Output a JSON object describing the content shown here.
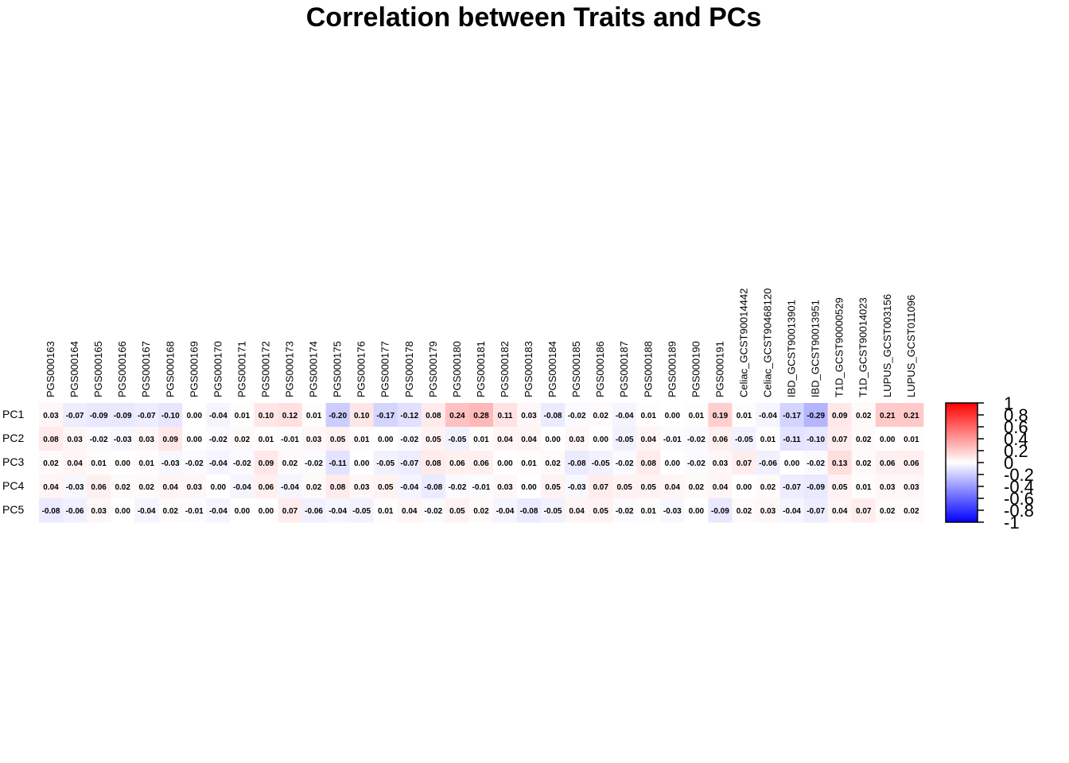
{
  "chart_data": {
    "type": "heatmap",
    "title": "Correlation between Traits and PCs",
    "rows": [
      "PC1",
      "PC2",
      "PC3",
      "PC4",
      "PC5"
    ],
    "columns": [
      "PGS000163",
      "PGS000164",
      "PGS000165",
      "PGS000166",
      "PGS000167",
      "PGS000168",
      "PGS000169",
      "PGS000170",
      "PGS000171",
      "PGS000172",
      "PGS000173",
      "PGS000174",
      "PGS000175",
      "PGS000176",
      "PGS000177",
      "PGS000178",
      "PGS000179",
      "PGS000180",
      "PGS000181",
      "PGS000182",
      "PGS000183",
      "PGS000184",
      "PGS000185",
      "PGS000186",
      "PGS000187",
      "PGS000188",
      "PGS000189",
      "PGS000190",
      "PGS000191",
      "Celiac_GCST90014442",
      "Celiac_GCST90468120",
      "IBD_GCST90013901",
      "IBD_GCST90013951",
      "T1D_GCST90000529",
      "T1D_GCST90014023",
      "LUPUS_GCST003156",
      "LUPUS_GCST011096"
    ],
    "values": [
      [
        0.03,
        -0.07,
        -0.09,
        -0.09,
        -0.07,
        -0.1,
        0.0,
        -0.04,
        0.01,
        0.1,
        0.12,
        0.01,
        -0.2,
        0.1,
        -0.17,
        -0.12,
        0.08,
        0.24,
        0.28,
        0.11,
        0.03,
        -0.08,
        -0.02,
        0.02,
        -0.04,
        0.01,
        0.0,
        0.01,
        0.19,
        0.01,
        -0.04,
        -0.17,
        -0.29,
        0.09,
        0.02,
        0.21,
        0.21
      ],
      [
        0.08,
        0.03,
        -0.02,
        -0.03,
        0.03,
        0.09,
        0.0,
        -0.02,
        0.02,
        0.01,
        -0.01,
        0.03,
        0.05,
        0.01,
        0.0,
        -0.02,
        0.05,
        -0.05,
        0.01,
        0.04,
        0.04,
        0.0,
        0.03,
        0.0,
        -0.05,
        0.04,
        -0.01,
        -0.02,
        0.06,
        -0.05,
        0.01,
        -0.11,
        -0.1,
        0.07,
        0.02,
        0.0,
        0.01
      ],
      [
        0.02,
        0.04,
        0.01,
        0.0,
        0.01,
        -0.03,
        -0.02,
        -0.04,
        -0.02,
        0.09,
        0.02,
        -0.02,
        -0.11,
        0.0,
        -0.05,
        -0.07,
        0.08,
        0.06,
        0.06,
        0.0,
        0.01,
        0.02,
        -0.08,
        -0.05,
        -0.02,
        0.08,
        0.0,
        -0.02,
        0.03,
        0.07,
        -0.06,
        0.0,
        -0.02,
        0.13,
        0.02,
        0.06,
        0.06
      ],
      [
        0.04,
        -0.03,
        0.06,
        0.02,
        0.02,
        0.04,
        0.03,
        0.0,
        -0.04,
        0.06,
        -0.04,
        0.02,
        0.08,
        0.03,
        0.05,
        -0.04,
        -0.08,
        -0.02,
        -0.01,
        0.03,
        0.0,
        0.05,
        -0.03,
        0.07,
        0.05,
        0.05,
        0.04,
        0.02,
        0.04,
        0.0,
        0.02,
        -0.07,
        -0.09,
        0.05,
        0.01,
        0.03,
        0.03
      ],
      [
        -0.08,
        -0.06,
        0.03,
        0.0,
        -0.04,
        0.02,
        -0.01,
        -0.04,
        0.0,
        0.0,
        0.07,
        -0.06,
        -0.04,
        -0.05,
        0.01,
        0.04,
        -0.02,
        0.05,
        0.02,
        -0.04,
        -0.08,
        -0.05,
        0.04,
        0.05,
        -0.02,
        0.01,
        -0.03,
        0.0,
        -0.09,
        0.02,
        0.03,
        -0.04,
        -0.07,
        0.04,
        0.07,
        0.02,
        0.02
      ]
    ],
    "color_scale": {
      "low": "#0000FF",
      "mid": "#FFFFFF",
      "high": "#FF0000",
      "range": [
        -1,
        1
      ]
    },
    "legend_ticks": [
      "1",
      "0.8",
      "0.6",
      "0.4",
      "0.2",
      "0",
      "-0.2",
      "-0.4",
      "-0.6",
      "-0.8",
      "-1"
    ]
  }
}
